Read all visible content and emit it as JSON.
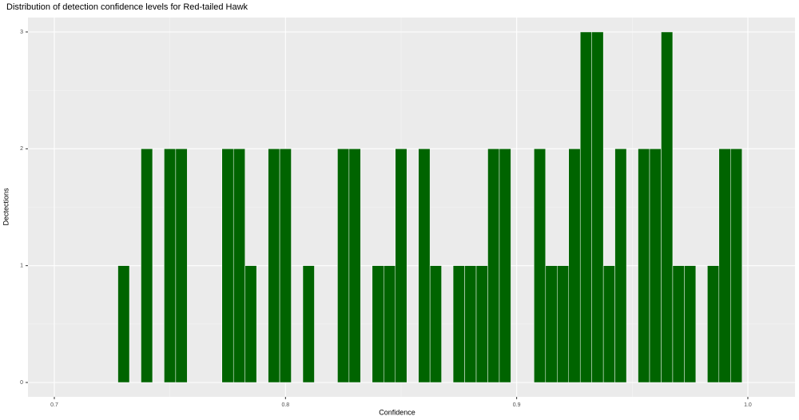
{
  "chart_data": {
    "type": "histogram",
    "title": "Distribution of detection confidence levels for Red-tailed Hawk",
    "x_label": "Confidence",
    "y_label": "Dectections",
    "bins": [
      0.7275,
      0.7325,
      0.7375,
      0.7425,
      0.7475,
      0.7525,
      0.7575,
      0.7625,
      0.7675,
      0.7725,
      0.7775,
      0.7825,
      0.7875,
      0.7925,
      0.7975,
      0.8025,
      0.8075,
      0.8125,
      0.8175,
      0.8225,
      0.8275,
      0.8325,
      0.8375,
      0.8425,
      0.8475,
      0.8525,
      0.8575,
      0.8625,
      0.8675,
      0.8725,
      0.8775,
      0.8825,
      0.8875,
      0.8925,
      0.8975,
      0.9025,
      0.9075,
      0.9125,
      0.9175,
      0.9225,
      0.9275,
      0.9325,
      0.9375,
      0.9425,
      0.9475,
      0.9525,
      0.9575,
      0.9625,
      0.9675,
      0.9725,
      0.9775,
      0.9825,
      0.9875,
      0.9925,
      0.9975
    ],
    "values": [
      1,
      0,
      2,
      0,
      2,
      2,
      0,
      0,
      0,
      2,
      2,
      1,
      0,
      2,
      2,
      0,
      1,
      0,
      0,
      2,
      2,
      0,
      1,
      1,
      2,
      0,
      2,
      1,
      0,
      1,
      1,
      1,
      2,
      2,
      0,
      0,
      2,
      1,
      1,
      2,
      3,
      3,
      1,
      2,
      0,
      2,
      2,
      3,
      1,
      1,
      0,
      1,
      2,
      2
    ],
    "color": "#006400",
    "xlim": [
      0.6886,
      1.0204
    ],
    "xticks": [
      0.7,
      0.8,
      0.9,
      {
        "value": 1.0,
        "label": "1.0"
      }
    ],
    "ylim": [
      -0.123,
      3.123
    ],
    "yticks": [
      0,
      1,
      2,
      3
    ],
    "grid": true
  }
}
